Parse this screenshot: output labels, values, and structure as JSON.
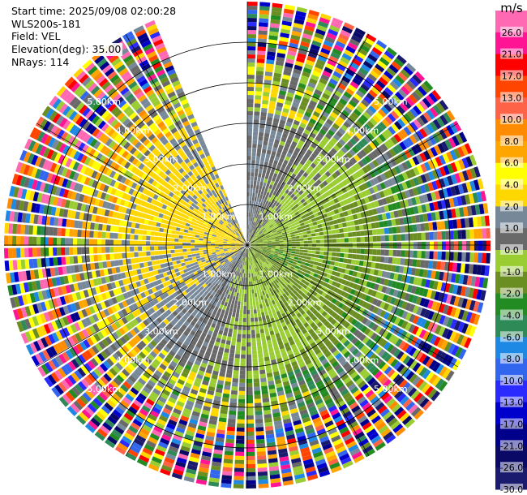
{
  "header": {
    "start_time": "Start time: 2025/09/08 02:00:28",
    "instrument": "WLS200s-181",
    "field": "Field: VEL",
    "elevation": "Elevation(deg): 35.00",
    "nrays": "NRays: 114"
  },
  "chart_data": {
    "type": "ppi-radar",
    "field": "VEL",
    "units": "m/s",
    "elevation_deg": 35.0,
    "nrays": 114,
    "missing_sector_deg": [
      338,
      360
    ],
    "range_rings_km": [
      1.0,
      2.0,
      3.0,
      4.0,
      5.0
    ],
    "ring_labels": [
      "1.00km",
      "2.00km",
      "3.00km",
      "4.00km",
      "5.00km"
    ],
    "max_range_km": 6.0,
    "colorbar": {
      "title": "m/s",
      "ticks": [
        "26.0",
        "21.0",
        "17.0",
        "13.0",
        "10.0",
        "8.0",
        "6.0",
        "4.0",
        "2.0",
        "1.0",
        "0.0",
        "-1.0",
        "-2.0",
        "-4.0",
        "-6.0",
        "-8.0",
        "-10.0",
        "-13.0",
        "-17.0",
        "-21.0",
        "-26.0",
        "-30.0"
      ],
      "bounds": [
        -30,
        -26,
        -21,
        -17,
        -13,
        -10,
        -8,
        -6,
        -4,
        -2,
        -1,
        0,
        1,
        2,
        4,
        6,
        8,
        10,
        13,
        17,
        21,
        26,
        30
      ],
      "colors": [
        "#1a1a6e",
        "#0a0a66",
        "#00008b",
        "#0000cd",
        "#2a2aff",
        "#3366ee",
        "#1e88e5",
        "#2e8b57",
        "#228b22",
        "#6b8e23",
        "#9acd32",
        "#696969",
        "#778899",
        "#ffd700",
        "#ffff00",
        "#ffa500",
        "#ff8c00",
        "#ff6347",
        "#ff4500",
        "#ff0000",
        "#ff1493",
        "#ff69b4"
      ]
    },
    "pattern": {
      "inbound_bearing_deg": 110,
      "inbound_color_index": 9,
      "outbound_bearing_deg": 290,
      "outbound_color_index": 13
    }
  }
}
